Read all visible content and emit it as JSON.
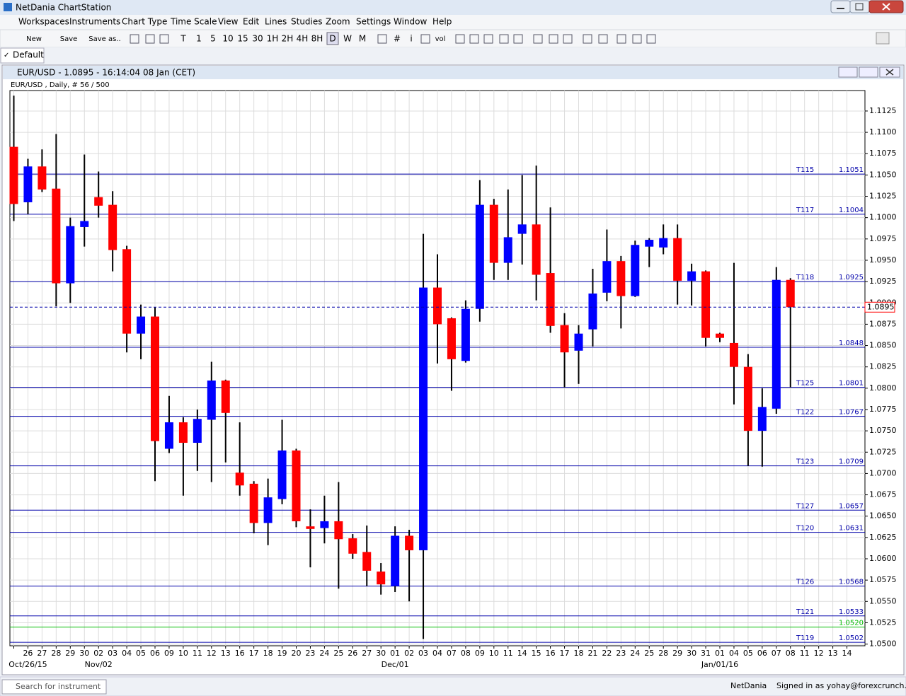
{
  "window": {
    "title": "NetDania ChartStation"
  },
  "menu": [
    "Workspaces",
    "Instruments",
    "Chart Type",
    "Time Scale",
    "View",
    "Edit",
    "Lines",
    "Studies",
    "Zoom",
    "Settings",
    "Window",
    "Help"
  ],
  "toolbar": {
    "file": [
      "New",
      "Save",
      "Save as.."
    ],
    "periods": [
      "T",
      "1",
      "5",
      "10",
      "15",
      "30",
      "1H",
      "2H",
      "4H",
      "8H",
      "D",
      "W",
      "M"
    ],
    "tools": [
      "#",
      "i",
      "vol"
    ]
  },
  "tab": "Default",
  "chart_window": {
    "title": "EUR/USD - 1.0895 - 16:14:04  08 Jan (CET)"
  },
  "chart_data": {
    "type": "candlestick",
    "subtitle": "EUR/USD , Daily, # 56 / 500",
    "categories": [
      null,
      "26",
      "27",
      "28",
      "29",
      "30",
      "02",
      "03",
      "04",
      "05",
      "06",
      "09",
      "10",
      "11",
      "12",
      "13",
      "16",
      "17",
      "18",
      "19",
      "20",
      "23",
      "24",
      "25",
      "26",
      "27",
      "30",
      "01",
      "02",
      "03",
      "04",
      "07",
      "08",
      "09",
      "10",
      "11",
      "14",
      "15",
      "16",
      "17",
      "18",
      "21",
      "22",
      "23",
      "24",
      "25",
      "28",
      "29",
      "30",
      "31",
      "01",
      "04",
      "05",
      "06",
      "07",
      "08",
      "11",
      "12",
      "13",
      "14"
    ],
    "category_groups": [
      null,
      "Oct/26/15",
      null,
      null,
      null,
      null,
      "Nov/02",
      null,
      null,
      null,
      null,
      null,
      null,
      null,
      null,
      null,
      null,
      null,
      null,
      null,
      null,
      null,
      null,
      null,
      null,
      null,
      null,
      "Dec/01",
      null,
      null,
      null,
      null,
      null,
      null,
      null,
      null,
      null,
      null,
      null,
      null,
      null,
      null,
      null,
      null,
      null,
      null,
      null,
      null,
      null,
      null,
      "Jan/01/16",
      null,
      null,
      null,
      null,
      null,
      null,
      null,
      null,
      null
    ],
    "open": [
      1.1083,
      1.1018,
      1.106,
      1.1034,
      1.0923,
      1.0989,
      1.1024,
      1.1015,
      1.0963,
      1.0864,
      1.0884,
      1.0729,
      1.076,
      1.0736,
      1.0763,
      1.0809,
      1.0701,
      1.0688,
      1.0642,
      1.067,
      1.0727,
      1.0638,
      1.0636,
      1.0644,
      1.0624,
      1.0608,
      1.0585,
      1.0568,
      1.0627,
      1.061,
      1.0918,
      1.0882,
      1.0832,
      1.0893,
      1.1015,
      1.0947,
      1.0981,
      1.0992,
      1.0935,
      1.0874,
      1.0844,
      1.0869,
      1.0912,
      1.0949,
      1.0908,
      1.0966,
      1.0965,
      1.0976,
      1.0926,
      1.0937,
      1.0864,
      1.0853,
      1.0825,
      1.075,
      1.0776,
      1.0927,
      null,
      null,
      null,
      null
    ],
    "high": [
      1.1143,
      1.1069,
      1.108,
      1.1098,
      1.1,
      1.1074,
      1.1054,
      1.1031,
      1.0967,
      1.0898,
      1.0895,
      1.0791,
      1.0766,
      1.0775,
      1.0831,
      1.081,
      1.076,
      1.0691,
      1.0694,
      1.0763,
      1.0729,
      1.0658,
      1.0674,
      1.069,
      1.0629,
      1.0639,
      1.0595,
      1.0638,
      1.0634,
      1.0981,
      1.0957,
      1.0883,
      1.0903,
      1.1044,
      1.1022,
      1.1033,
      1.105,
      1.1061,
      1.1012,
      1.0888,
      1.0874,
      1.094,
      1.0986,
      1.0955,
      1.0973,
      1.0976,
      1.0992,
      1.0992,
      1.0946,
      1.0938,
      1.0865,
      1.0947,
      1.084,
      1.08,
      1.0942,
      1.0929,
      null,
      null,
      null,
      null
    ],
    "low": [
      1.0996,
      1.1004,
      1.103,
      1.0896,
      1.09,
      1.0966,
      1.1,
      1.0937,
      1.0842,
      1.0834,
      1.0691,
      1.0724,
      1.0674,
      1.0703,
      1.069,
      1.0713,
      1.0674,
      1.063,
      1.0616,
      1.0664,
      1.0637,
      1.059,
      1.0618,
      1.0565,
      1.06,
      1.0568,
      1.0558,
      1.0561,
      1.055,
      1.0506,
      1.0829,
      1.0797,
      1.083,
      1.0878,
      1.0927,
      1.0927,
      1.0945,
      1.0903,
      1.0865,
      1.0801,
      1.0805,
      1.0849,
      1.0902,
      1.087,
      1.0907,
      1.0942,
      1.0957,
      1.0898,
      1.0897,
      1.0849,
      1.0854,
      1.0781,
      1.0709,
      1.0708,
      1.077,
      1.0801,
      null,
      null,
      null,
      null
    ],
    "close": [
      1.1016,
      1.106,
      1.1033,
      1.0923,
      1.099,
      1.0996,
      1.1014,
      1.0962,
      1.0864,
      1.0884,
      1.0738,
      1.076,
      1.0736,
      1.0764,
      1.0809,
      1.0771,
      1.0686,
      1.0642,
      1.0672,
      1.0727,
      1.0644,
      1.0635,
      1.0644,
      1.0623,
      1.0606,
      1.0586,
      1.057,
      1.0627,
      1.061,
      1.0918,
      1.0875,
      1.0834,
      1.0893,
      1.1015,
      1.0947,
      1.0977,
      1.0992,
      1.0933,
      1.0873,
      1.0842,
      1.0864,
      1.0911,
      1.0949,
      1.0908,
      1.0968,
      1.0974,
      1.0976,
      1.0926,
      1.0937,
      1.0859,
      1.0859,
      1.0825,
      1.075,
      1.0778,
      1.0927,
      1.0895,
      null,
      null,
      null,
      null
    ],
    "up_color": "#0000ff",
    "down_color": "#ff0000",
    "grid": true,
    "ylim": [
      1.0498,
      1.1149
    ],
    "yticks": [
      {
        "value": 1.05,
        "label": "1.0500"
      },
      {
        "value": 1.0525,
        "label": "1.0525"
      },
      {
        "value": 1.055,
        "label": "1.0550"
      },
      {
        "value": 1.0575,
        "label": "1.0575"
      },
      {
        "value": 1.06,
        "label": "1.0600"
      },
      {
        "value": 1.0625,
        "label": "1.0625"
      },
      {
        "value": 1.065,
        "label": "1.0650"
      },
      {
        "value": 1.0675,
        "label": "1.0675"
      },
      {
        "value": 1.07,
        "label": "1.0700"
      },
      {
        "value": 1.0725,
        "label": "1.0725"
      },
      {
        "value": 1.075,
        "label": "1.0750"
      },
      {
        "value": 1.0775,
        "label": "1.0775"
      },
      {
        "value": 1.08,
        "label": "1.0800"
      },
      {
        "value": 1.0825,
        "label": "1.0825"
      },
      {
        "value": 1.085,
        "label": "1.0850"
      },
      {
        "value": 1.0875,
        "label": "1.0875"
      },
      {
        "value": 1.09,
        "label": "1.0900"
      },
      {
        "value": 1.0925,
        "label": "1.0925"
      },
      {
        "value": 1.095,
        "label": "1.0950"
      },
      {
        "value": 1.0975,
        "label": "1.0975"
      },
      {
        "value": 1.1,
        "label": "1.1000"
      },
      {
        "value": 1.1025,
        "label": "1.1025"
      },
      {
        "value": 1.105,
        "label": "1.1050"
      },
      {
        "value": 1.1075,
        "label": "1.1075"
      },
      {
        "value": 1.11,
        "label": "1.1100"
      },
      {
        "value": 1.1125,
        "label": "1.1125"
      }
    ],
    "levels": [
      {
        "name": "T115",
        "value": 1.1051,
        "color": "#0000aa"
      },
      {
        "name": "T117",
        "value": 1.1004,
        "color": "#0000aa"
      },
      {
        "name": "T118",
        "value": 1.0925,
        "color": "#0000aa"
      },
      {
        "value": 1.0848,
        "color": "#0000aa"
      },
      {
        "name": "T125",
        "value": 1.0801,
        "color": "#0000aa"
      },
      {
        "name": "T122",
        "value": 1.0767,
        "color": "#0000aa"
      },
      {
        "name": "T123",
        "value": 1.0709,
        "color": "#0000aa"
      },
      {
        "name": "T127",
        "value": 1.0657,
        "color": "#0000aa"
      },
      {
        "name": "T120",
        "value": 1.0631,
        "color": "#0000aa"
      },
      {
        "name": "T126",
        "value": 1.0568,
        "color": "#0000aa"
      },
      {
        "name": "T121",
        "value": 1.0533,
        "color": "#0000aa"
      },
      {
        "value": 1.052,
        "label": "1.0520",
        "color": "#00bb00"
      },
      {
        "name": "T119",
        "value": 1.0502,
        "color": "#0000aa"
      }
    ]
  },
  "status_bar": {
    "search_placeholder": "Search for instrument",
    "provider": "NetDania",
    "user": "Signed in as yohay@forexcrunch.com"
  }
}
